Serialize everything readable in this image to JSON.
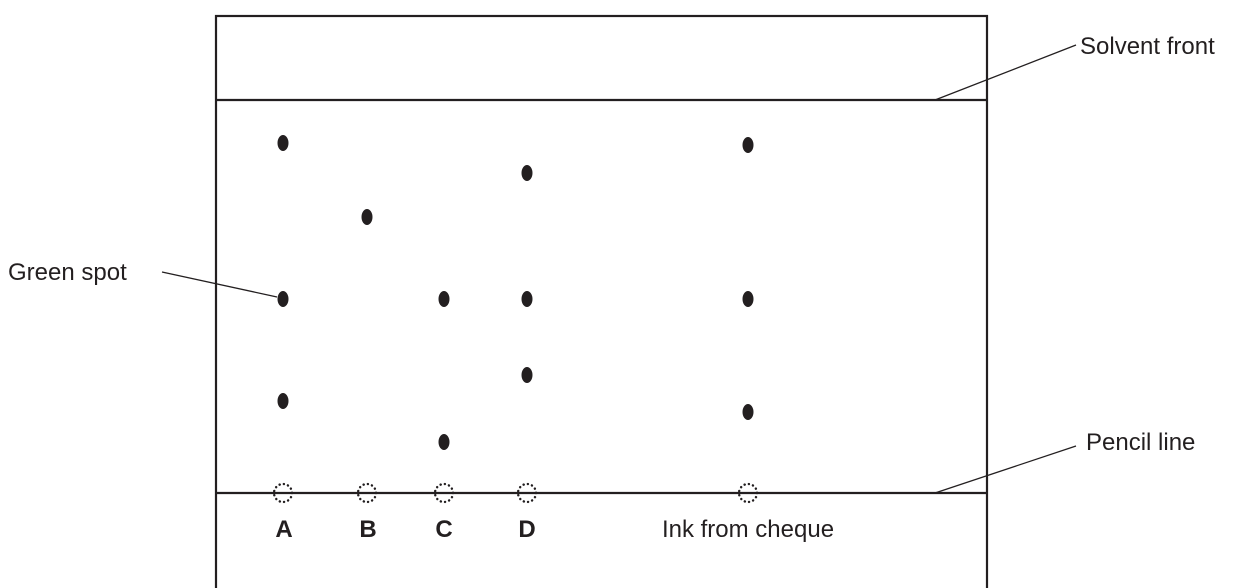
{
  "labels": {
    "solvent_front": "Solvent front",
    "pencil_line": "Pencil line",
    "green_spot": "Green spot"
  },
  "lanes": [
    {
      "id": "A",
      "label": "A",
      "spot_count": 3
    },
    {
      "id": "B",
      "label": "B",
      "spot_count": 1
    },
    {
      "id": "C",
      "label": "C",
      "spot_count": 2
    },
    {
      "id": "D",
      "label": "D",
      "spot_count": 3
    },
    {
      "id": "ink",
      "label": "Ink from cheque",
      "spot_count": 3
    }
  ],
  "colors": {
    "ink": "#231f20",
    "background": "#ffffff"
  }
}
